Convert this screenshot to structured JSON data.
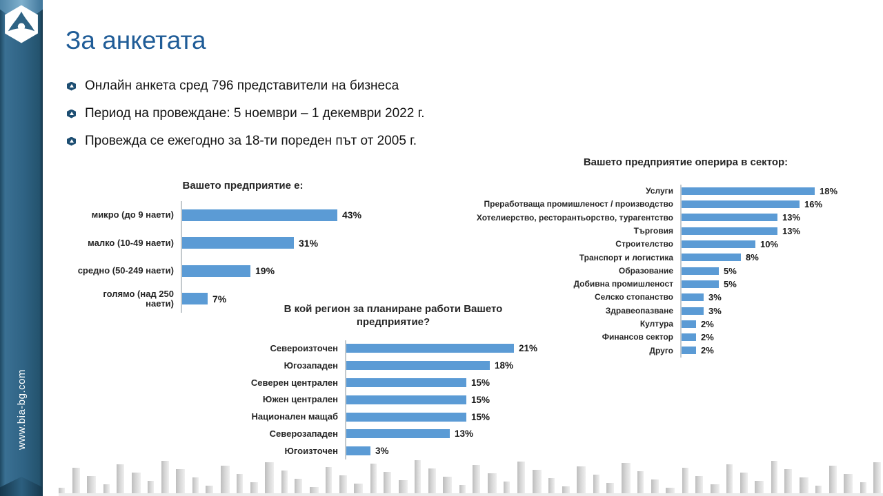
{
  "title": "За анкетата",
  "sidebar": {
    "website": "www.bia-bg.com",
    "logo": "bia-logo"
  },
  "bullets": [
    "Онлайн анкета сред 796 представители на бизнеса",
    "Период на провеждане: 5 ноември – 1 декември 2022 г.",
    "Провежда се ежегодно за 18-ти пореден път от 2005 г."
  ],
  "colors": {
    "accent": "#5B9BD5",
    "title": "#1F5C97",
    "sidebar": "#2F6384"
  },
  "chart_data": [
    {
      "type": "bar",
      "orientation": "horizontal",
      "title": "Вашето предприятие е:",
      "categories": [
        "микро (до 9 наети)",
        "малко (10-49 наети)",
        "средно (50-249 наети)",
        "голямо (над 250 наети)"
      ],
      "values": [
        43,
        31,
        19,
        7
      ],
      "unit": "%",
      "xlim": [
        0,
        45
      ],
      "grid": false,
      "legend": false
    },
    {
      "type": "bar",
      "orientation": "horizontal",
      "title": "Вашето предприятие оперира в сектор:",
      "categories": [
        "Услуги",
        "Преработваща промишленост / производство",
        "Хотелиерство, ресторантьорство, турагентство",
        "Търговия",
        "Строителство",
        "Транспорт и логистика",
        "Образование",
        "Добивна промишленост",
        "Селско стопанство",
        "Здравеопазване",
        "Култура",
        "Финансов сектор",
        "Друго"
      ],
      "values": [
        18,
        16,
        13,
        13,
        10,
        8,
        5,
        5,
        3,
        3,
        2,
        2,
        2
      ],
      "unit": "%",
      "xlim": [
        0,
        20
      ],
      "grid": false,
      "legend": false
    },
    {
      "type": "bar",
      "orientation": "horizontal",
      "title": "В кой регион за планиране работи Вашето предприятие?",
      "categories": [
        "Североизточен",
        "Югозападен",
        "Северен централен",
        "Южен централен",
        "Национален мащаб",
        "Северозападен",
        "Югоизточен"
      ],
      "values": [
        21,
        18,
        15,
        15,
        15,
        13,
        3
      ],
      "unit": "%",
      "xlim": [
        0,
        23
      ],
      "grid": false,
      "legend": false
    }
  ]
}
